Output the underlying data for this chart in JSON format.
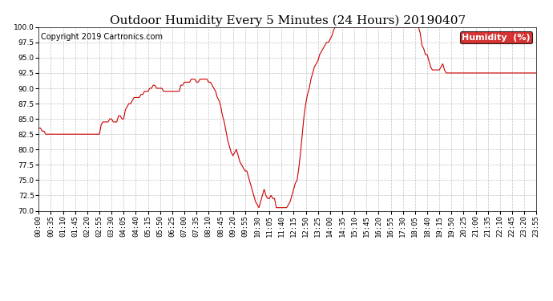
{
  "title": "Outdoor Humidity Every 5 Minutes (24 Hours) 20190407",
  "copyright": "Copyright 2019 Cartronics.com",
  "legend_label": "Humidity  (%)",
  "ylim": [
    70.0,
    100.0
  ],
  "yticks": [
    70.0,
    72.5,
    75.0,
    77.5,
    80.0,
    82.5,
    85.0,
    87.5,
    90.0,
    92.5,
    95.0,
    97.5,
    100.0
  ],
  "line_color": "#cc0000",
  "bg_color": "#ffffff",
  "grid_color": "#bbbbbb",
  "title_fontsize": 11,
  "tick_fontsize": 6.5,
  "copyright_fontsize": 7,
  "legend_bg": "#cc0000",
  "legend_fg": "#ffffff",
  "legend_fontsize": 8,
  "humidity_data": [
    83.5,
    83.5,
    83.0,
    83.0,
    82.5,
    82.5,
    82.5,
    82.5,
    82.5,
    82.5,
    82.5,
    82.5,
    82.5,
    82.5,
    82.5,
    82.5,
    82.5,
    82.5,
    82.5,
    82.5,
    82.5,
    82.5,
    82.5,
    82.5,
    82.5,
    82.5,
    82.5,
    82.5,
    82.5,
    82.5,
    82.5,
    82.5,
    82.5,
    82.5,
    82.5,
    82.5,
    84.0,
    84.5,
    84.5,
    84.5,
    84.5,
    85.0,
    85.0,
    84.5,
    84.5,
    84.5,
    85.5,
    85.5,
    85.0,
    85.0,
    86.5,
    87.0,
    87.5,
    87.5,
    88.0,
    88.5,
    88.5,
    88.5,
    88.5,
    89.0,
    89.0,
    89.5,
    89.5,
    89.5,
    90.0,
    90.0,
    90.5,
    90.5,
    90.0,
    90.0,
    90.0,
    90.0,
    89.5,
    89.5,
    89.5,
    89.5,
    89.5,
    89.5,
    89.5,
    89.5,
    89.5,
    89.5,
    90.5,
    90.5,
    91.0,
    91.0,
    91.0,
    91.0,
    91.5,
    91.5,
    91.5,
    91.0,
    91.0,
    91.5,
    91.5,
    91.5,
    91.5,
    91.5,
    91.0,
    91.0,
    90.5,
    90.0,
    89.5,
    88.5,
    88.0,
    87.0,
    85.5,
    84.5,
    83.0,
    81.5,
    80.5,
    79.5,
    79.0,
    79.5,
    80.0,
    79.0,
    78.0,
    77.5,
    77.0,
    76.5,
    76.5,
    75.5,
    74.5,
    73.5,
    72.5,
    71.5,
    71.0,
    70.5,
    71.5,
    72.5,
    73.5,
    72.5,
    72.0,
    72.0,
    72.5,
    72.0,
    72.0,
    70.5,
    70.5,
    70.5,
    70.5,
    70.5,
    70.5,
    70.5,
    71.0,
    71.5,
    72.5,
    73.5,
    74.5,
    75.0,
    77.0,
    79.5,
    82.5,
    85.5,
    87.5,
    89.0,
    90.0,
    91.5,
    92.5,
    93.5,
    94.0,
    94.5,
    95.5,
    96.0,
    96.5,
    97.0,
    97.5,
    97.5,
    98.0,
    98.5,
    99.5,
    100.0,
    100.0,
    100.0,
    100.0,
    100.0,
    100.0,
    100.0,
    100.0,
    100.0,
    100.0,
    100.0,
    100.0,
    100.0,
    100.0,
    100.0,
    100.0,
    100.0,
    100.0,
    100.0,
    100.0,
    100.0,
    100.0,
    100.0,
    100.0,
    100.0,
    100.0,
    100.0,
    100.0,
    100.0,
    100.0,
    100.0,
    100.0,
    100.0,
    100.0,
    100.0,
    100.0,
    100.0,
    100.0,
    100.0,
    100.0,
    100.0,
    100.0,
    100.0,
    100.0,
    100.0,
    100.0,
    100.0,
    100.0,
    100.0,
    99.0,
    97.0,
    96.5,
    95.5,
    95.5,
    94.5,
    93.5,
    93.0,
    93.0,
    93.0,
    93.0,
    93.0,
    93.5,
    94.0,
    93.0,
    92.5,
    92.5,
    92.5,
    92.5,
    92.5,
    92.5,
    92.5,
    92.5,
    92.5,
    92.5,
    92.5,
    92.5,
    92.5,
    92.5,
    92.5,
    92.5,
    92.5,
    92.5,
    92.5,
    92.5,
    92.5,
    92.5,
    92.5,
    92.5,
    92.5,
    92.5,
    92.5,
    92.5,
    92.5,
    92.5,
    92.5,
    92.5,
    92.5,
    92.5,
    92.5,
    92.5,
    92.5,
    92.5,
    92.5,
    92.5,
    92.5,
    92.5,
    92.5,
    92.5,
    92.5,
    92.5,
    92.5,
    92.5,
    92.5,
    92.5,
    92.5,
    92.5,
    92.5,
    92.5,
    92.5,
    92.5,
    92.5,
    92.5,
    92.5,
    92.5,
    92.5,
    92.5,
    92.5,
    92.5,
    92.5,
    92.5,
    92.5,
    92.5,
    92.5,
    92.5,
    92.5,
    92.5,
    92.5,
    92.5
  ]
}
